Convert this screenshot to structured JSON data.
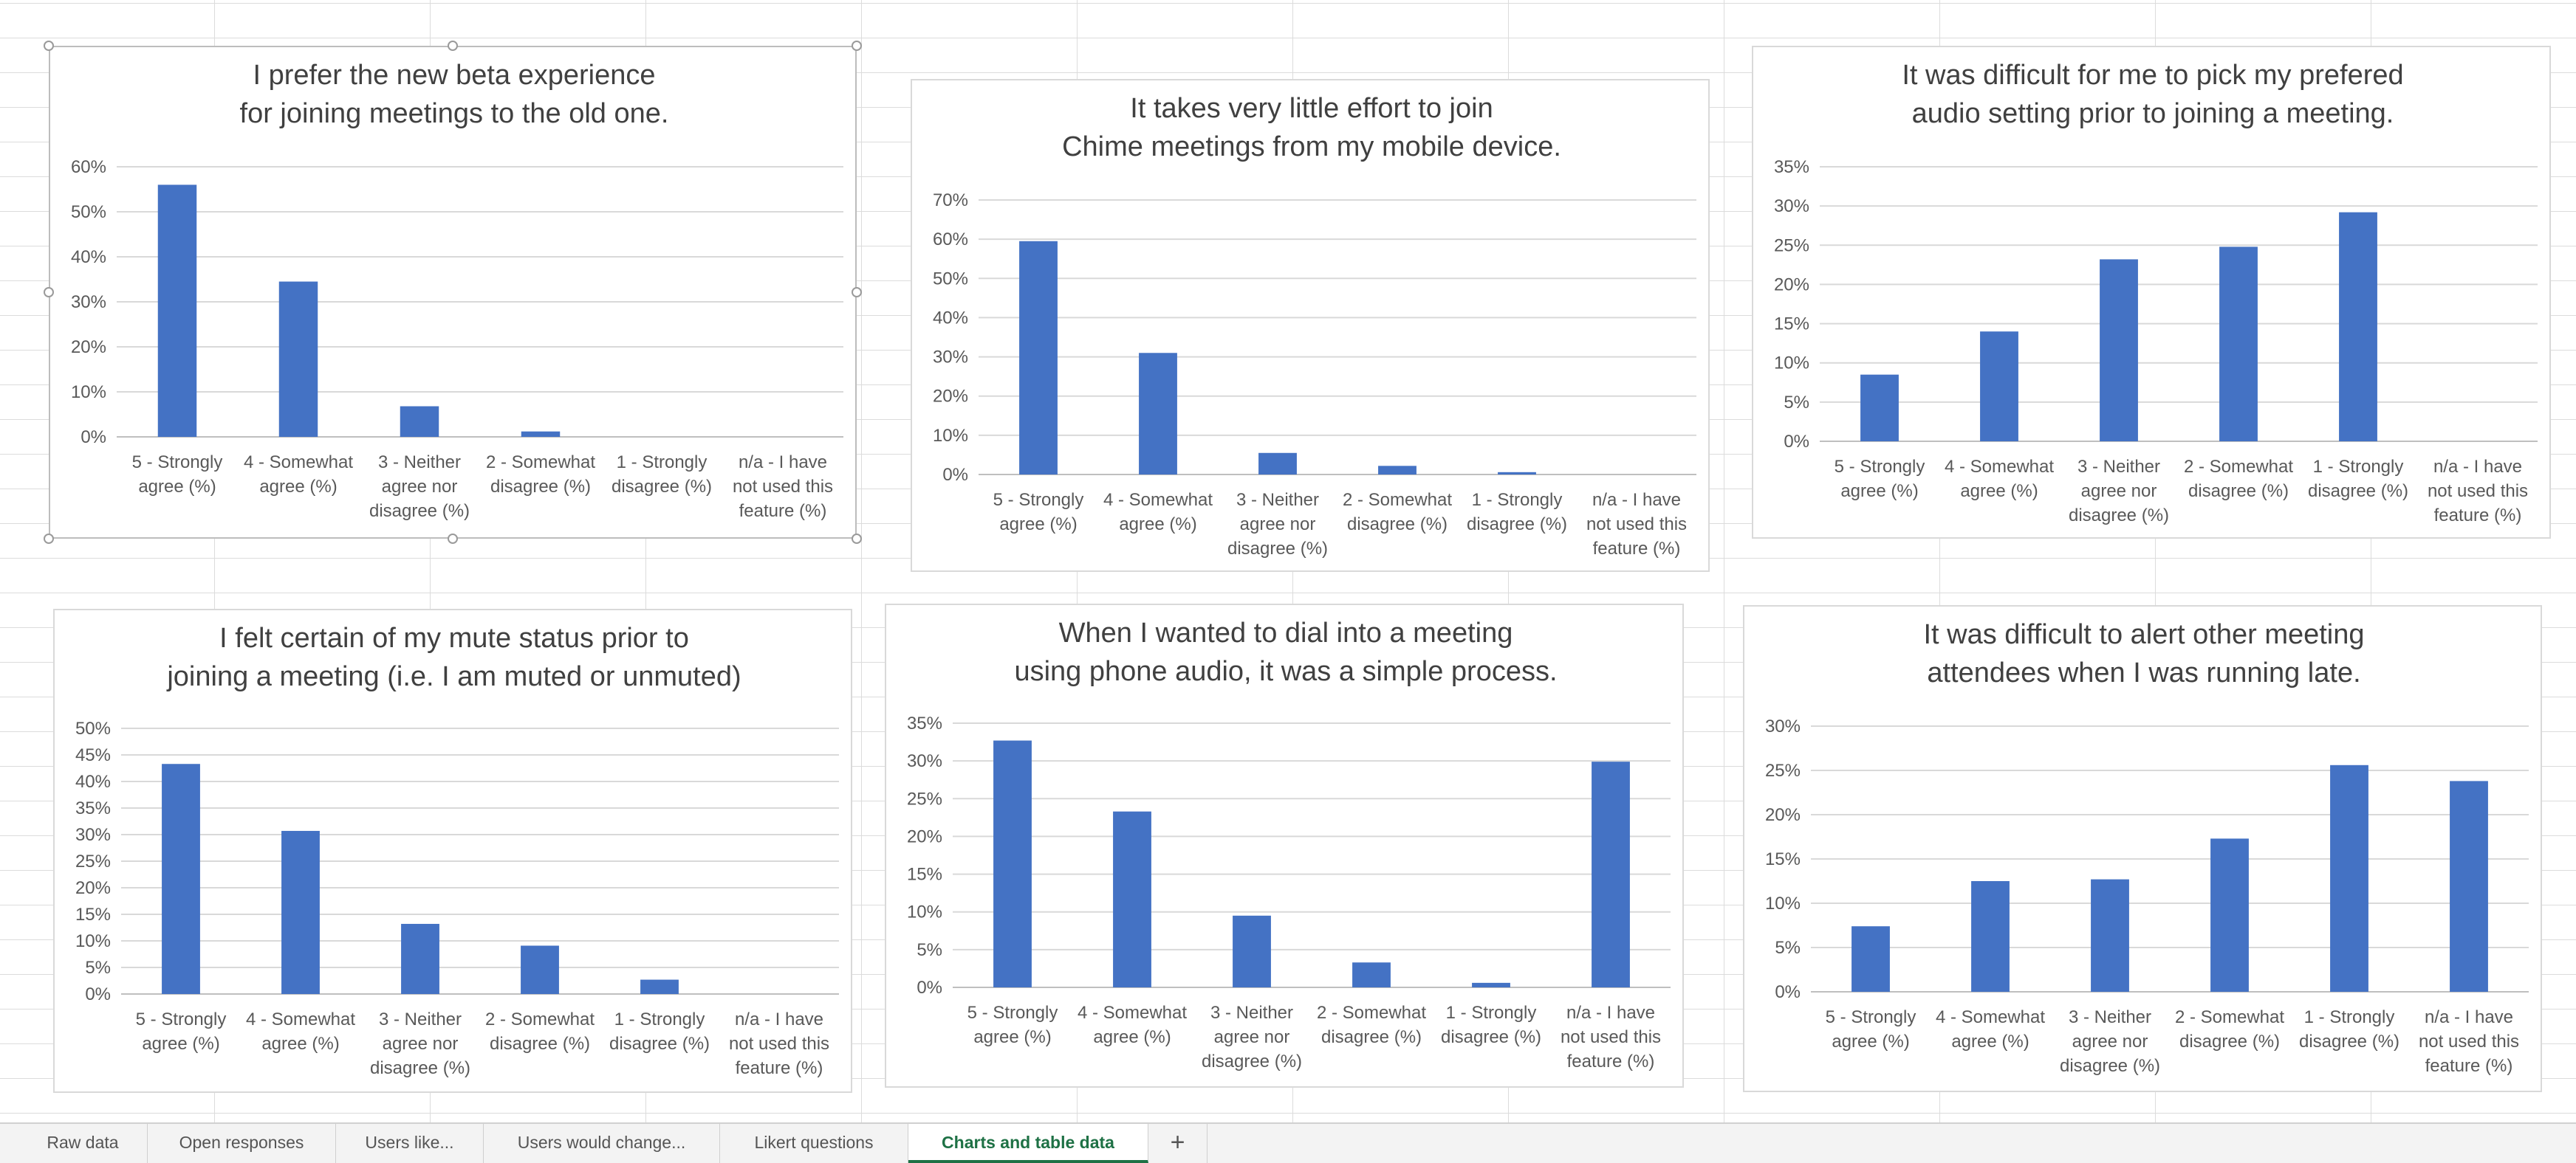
{
  "chart_data": [
    {
      "type": "bar",
      "title": "I prefer the new beta experience for joining meetings to the old one.",
      "categories": [
        "5 - Strongly agree (%)",
        "4 - Somewhat agree (%)",
        "3 - Neither agree nor disagree (%)",
        "2 - Somewhat disagree (%)",
        "1 - Strongly disagree (%)",
        "n/a - I have not used this feature (%)"
      ],
      "values": [
        56,
        34.5,
        6.8,
        1.2,
        0,
        0
      ],
      "ylim": [
        0,
        60
      ],
      "yticks": [
        "0%",
        "10%",
        "20%",
        "30%",
        "40%",
        "50%",
        "60%"
      ],
      "grid": true,
      "legend": "none",
      "color": "#4472c4"
    },
    {
      "type": "bar",
      "title": "It takes very little effort to join Chime meetings from my mobile device.",
      "categories": [
        "5 - Strongly agree (%)",
        "4 - Somewhat agree (%)",
        "3 - Neither agree nor disagree (%)",
        "2 - Somewhat disagree (%)",
        "1 - Strongly disagree (%)",
        "n/a - I have not used this feature (%)"
      ],
      "values": [
        59.5,
        31,
        5.5,
        2.2,
        0.6,
        0
      ],
      "ylim": [
        0,
        70
      ],
      "yticks": [
        "0%",
        "10%",
        "20%",
        "30%",
        "40%",
        "50%",
        "60%",
        "70%"
      ],
      "grid": true,
      "legend": "none",
      "color": "#4472c4"
    },
    {
      "type": "bar",
      "title": "It was difficult for me to pick my prefered audio setting prior to joining a meeting.",
      "categories": [
        "5 - Strongly agree (%)",
        "4 - Somewhat agree (%)",
        "3 - Neither agree nor disagree (%)",
        "2 - Somewhat disagree (%)",
        "1 - Strongly disagree (%)",
        "n/a - I have not used this feature (%)"
      ],
      "values": [
        8.5,
        14,
        23.2,
        24.8,
        29.2,
        0
      ],
      "ylim": [
        0,
        35
      ],
      "yticks": [
        "0%",
        "5%",
        "10%",
        "15%",
        "20%",
        "25%",
        "30%",
        "35%"
      ],
      "grid": true,
      "legend": "none",
      "color": "#4472c4"
    },
    {
      "type": "bar",
      "title": "I felt certain of my mute status prior to joining a meeting (i.e. I am muted or unmuted)",
      "categories": [
        "5 - Strongly agree (%)",
        "4 - Somewhat agree (%)",
        "3 - Neither agree nor disagree (%)",
        "2 - Somewhat disagree (%)",
        "1 - Strongly disagree (%)",
        "n/a - I have not used this feature (%)"
      ],
      "values": [
        43.3,
        30.7,
        13.2,
        9.1,
        2.7,
        0
      ],
      "ylim": [
        0,
        50
      ],
      "yticks": [
        "0%",
        "5%",
        "10%",
        "15%",
        "20%",
        "25%",
        "30%",
        "35%",
        "40%",
        "45%",
        "50%"
      ],
      "grid": true,
      "legend": "none",
      "color": "#4472c4"
    },
    {
      "type": "bar",
      "title": "When I wanted to dial into a meeting using phone audio, it was a simple process.",
      "categories": [
        "5 - Strongly agree (%)",
        "4 - Somewhat agree (%)",
        "3 - Neither agree nor disagree (%)",
        "2 - Somewhat disagree (%)",
        "1 - Strongly disagree (%)",
        "n/a - I have not used this feature (%)"
      ],
      "values": [
        32.7,
        23.3,
        9.5,
        3.3,
        0.6,
        29.9
      ],
      "ylim": [
        0,
        35
      ],
      "yticks": [
        "0%",
        "5%",
        "10%",
        "15%",
        "20%",
        "25%",
        "30%",
        "35%"
      ],
      "grid": true,
      "legend": "none",
      "color": "#4472c4"
    },
    {
      "type": "bar",
      "title": "It was difficult to alert other meeting attendees when I was running late.",
      "categories": [
        "5 - Strongly agree (%)",
        "4 - Somewhat agree (%)",
        "3 - Neither agree nor disagree (%)",
        "2 - Somewhat disagree (%)",
        "1 - Strongly disagree (%)",
        "n/a - I have not used this feature (%)"
      ],
      "values": [
        7.4,
        12.5,
        12.7,
        17.3,
        25.6,
        23.8
      ],
      "ylim": [
        0,
        30
      ],
      "yticks": [
        "0%",
        "5%",
        "10%",
        "15%",
        "20%",
        "25%",
        "30%"
      ],
      "grid": true,
      "legend": "none",
      "color": "#4472c4"
    }
  ],
  "sheet_tabs": {
    "items": [
      "Raw data",
      "Open responses",
      "Users like...",
      "Users would change...",
      "Likert questions",
      "Charts and table data"
    ],
    "active": "Charts and table data",
    "add_label": "+"
  }
}
